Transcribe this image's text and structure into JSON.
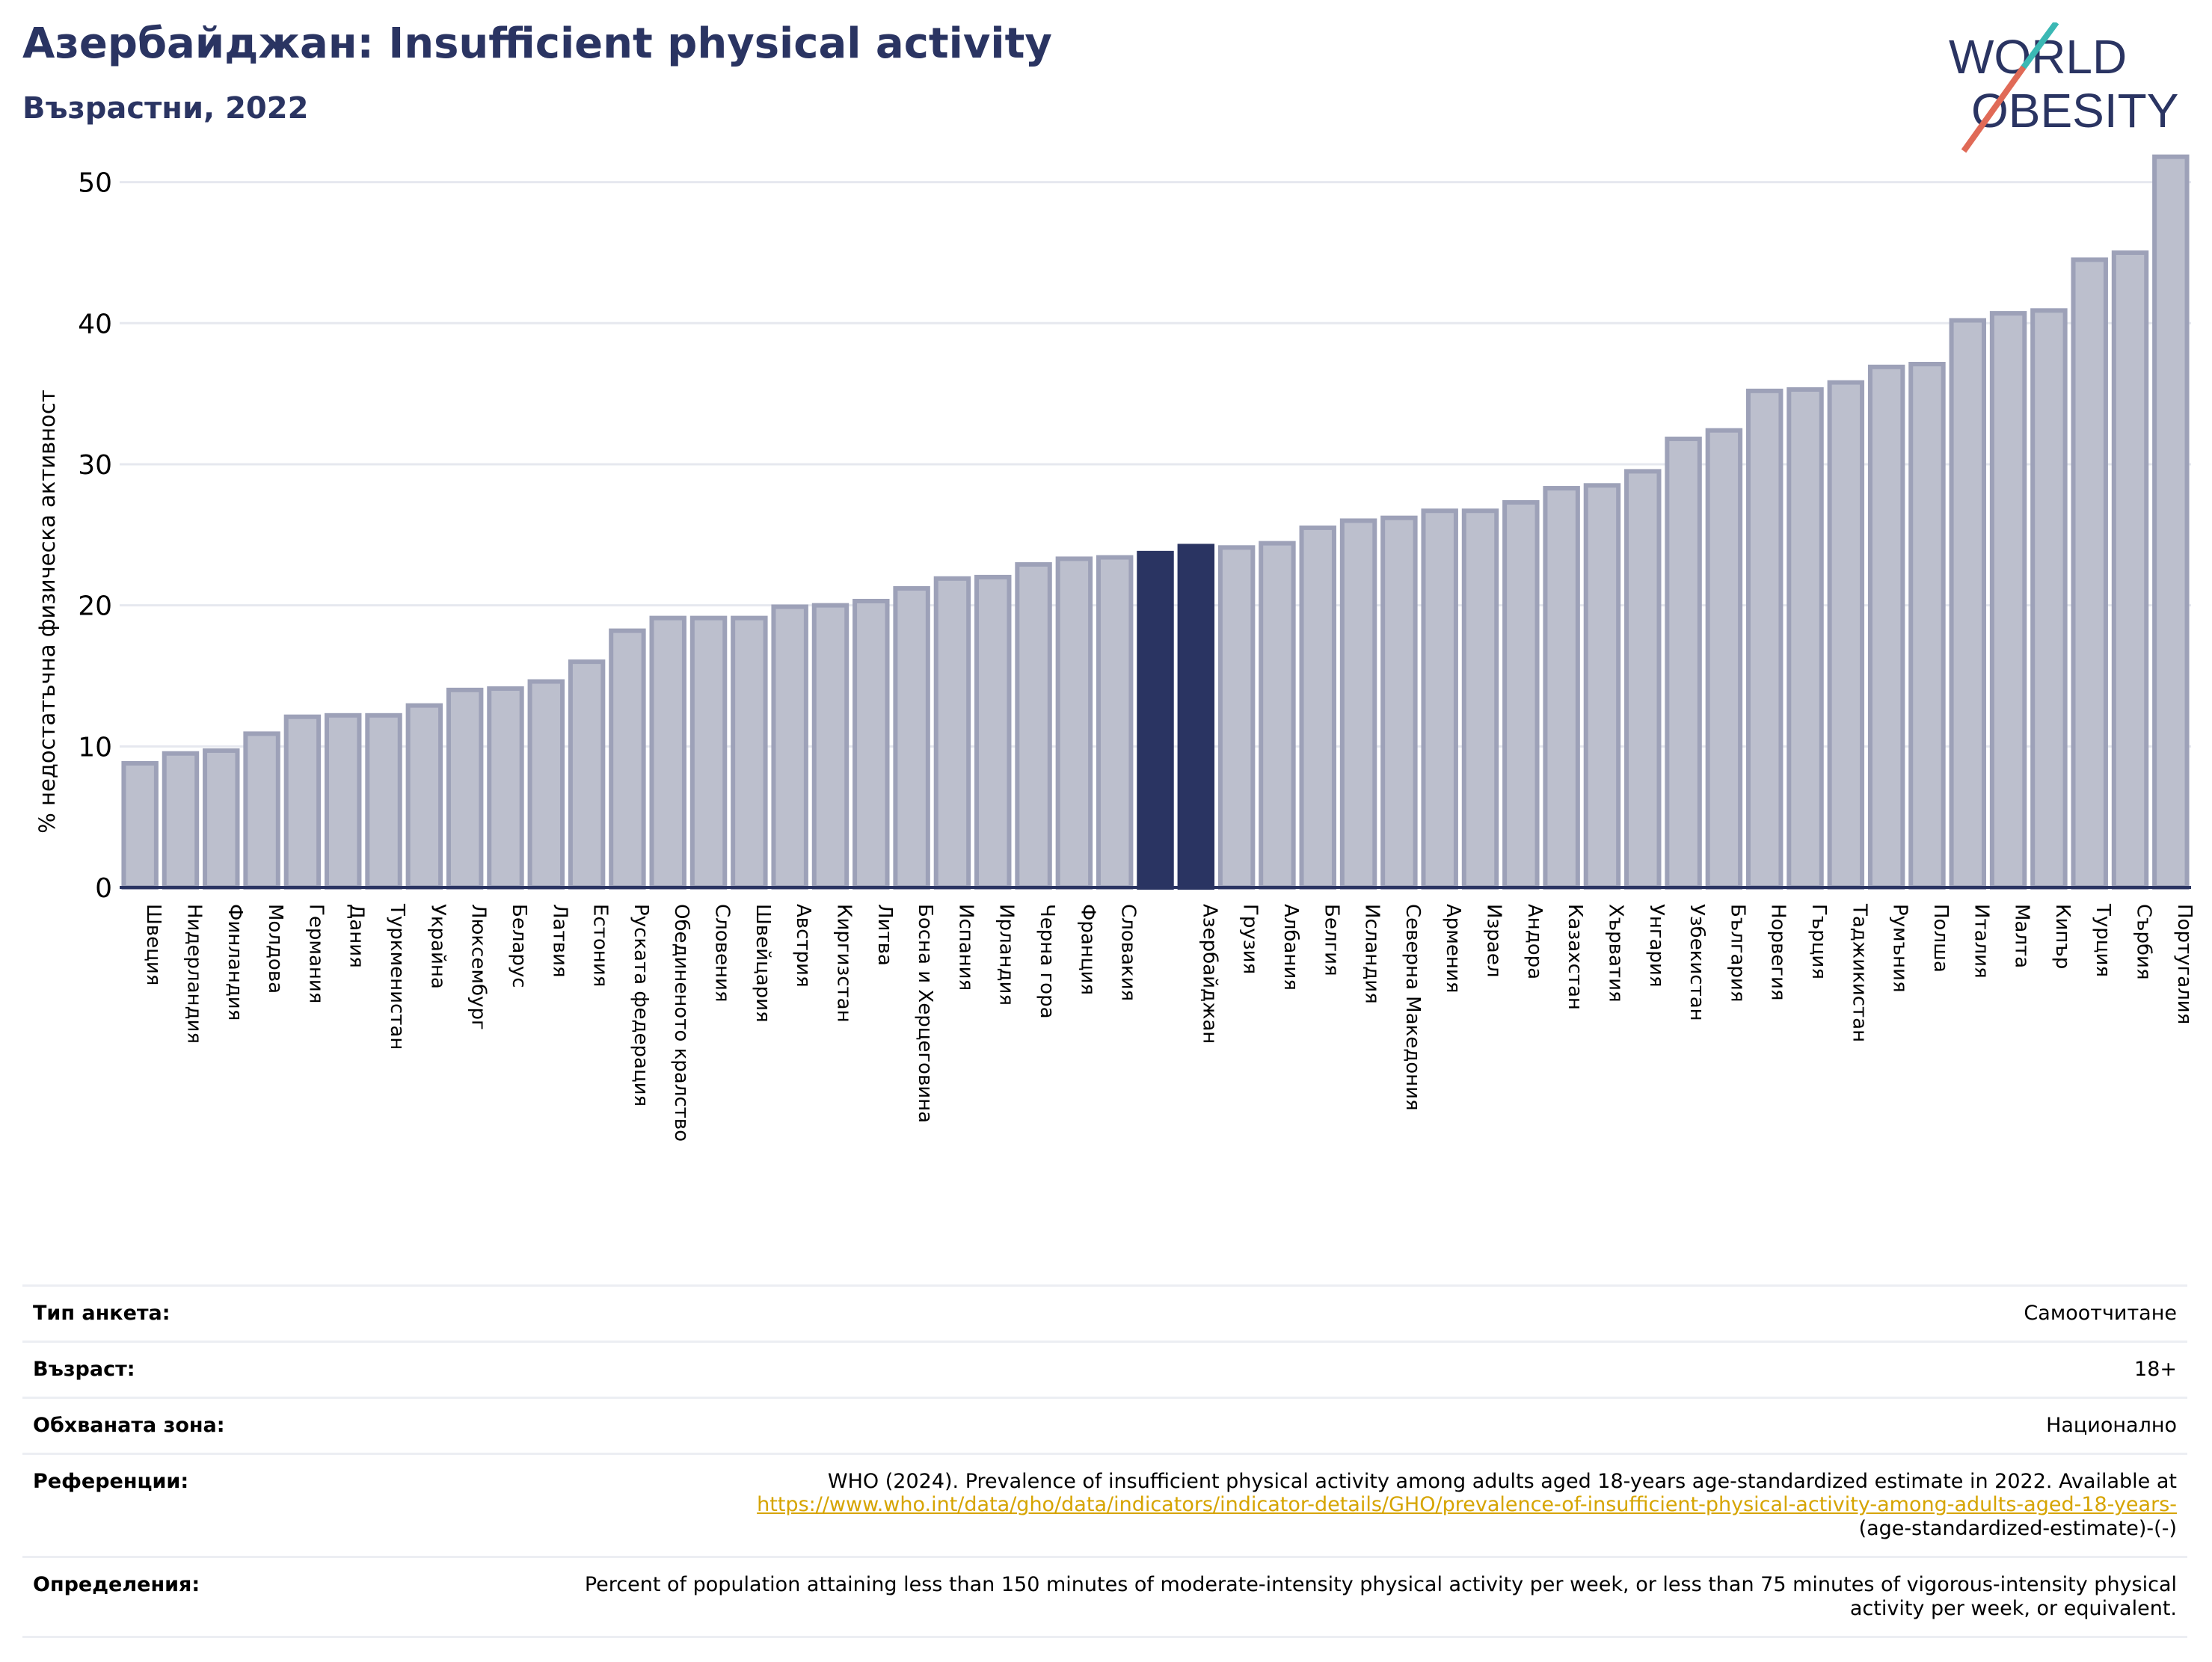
{
  "header": {
    "title": "Азербайджан: Insufficient physical activity",
    "subtitle": "Възрастни, 2022"
  },
  "logo": {
    "line1": "WORLD",
    "line2": "OBESITY",
    "text_color": "#2a3462",
    "slash_colors": [
      "#3bb8b4",
      "#e06a57"
    ]
  },
  "colors": {
    "bar_fill": "#bcbfcd",
    "bar_stroke": "#9da1b8",
    "highlight": "#2a3462",
    "grid": "#e6e8ef",
    "axis": "#2a3462"
  },
  "chart_data": {
    "type": "bar",
    "ylabel": "% недостатъчна физическа активност",
    "xlabel": "",
    "ylim": [
      0,
      53
    ],
    "yticks": [
      0,
      10,
      20,
      30,
      40,
      50
    ],
    "grid": true,
    "highlight": [
      "",
      "Азербайджан"
    ],
    "categories": [
      "Швеция",
      "Нидерландия",
      "Финландия",
      "Молдова",
      "Германия",
      "Дания",
      "Туркменистан",
      "Украйна",
      "Люксембург",
      "Беларус",
      "Латвия",
      "Естония",
      "Руската федерация",
      "Обединеното кралство",
      "Словения",
      "Швейцария",
      "Австрия",
      "Киргизстан",
      "Литва",
      "Босна и Херцеговина",
      "Испания",
      "Ирландия",
      "Черна гора",
      "Франция",
      "Словакия",
      "",
      "Азербайджан",
      "Грузия",
      "Албания",
      "Белгия",
      "Исландия",
      "Северна Македония",
      "Армения",
      "Израел",
      "Андора",
      "Казахстан",
      "Хърватия",
      "Унгария",
      "Узбекистан",
      "България",
      "Норвегия",
      "Гърция",
      "Таджикистан",
      "Румъния",
      "Полша",
      "Италия",
      "Малта",
      "Кипър",
      "Турция",
      "Сърбия",
      "Португалия"
    ],
    "values": [
      8.8,
      9.5,
      9.7,
      10.9,
      12.1,
      12.2,
      12.2,
      12.9,
      14.0,
      14.1,
      14.6,
      16.0,
      18.2,
      19.1,
      19.1,
      19.1,
      19.9,
      20.0,
      20.3,
      21.2,
      21.9,
      22.0,
      22.9,
      23.3,
      23.4,
      23.7,
      24.2,
      24.1,
      24.4,
      25.5,
      26.0,
      26.2,
      26.7,
      26.7,
      27.3,
      28.3,
      28.5,
      29.5,
      31.8,
      32.4,
      35.2,
      35.3,
      35.8,
      36.9,
      37.1,
      40.2,
      40.7,
      40.9,
      44.5,
      45.0,
      51.8
    ]
  },
  "info": {
    "rows": [
      {
        "label": "Тип анкета:",
        "value": "Самоотчитане"
      },
      {
        "label": "Възраст:",
        "value": "18+"
      },
      {
        "label": "Обхваната зона:",
        "value": "Национално"
      },
      {
        "label": "Референции:",
        "value": "WHO (2024). Prevalence of insufficient physical activity among adults aged 18-years age-standardized estimate in 2022. Available at",
        "link": "https://www.who.int/data/gho/data/indicators/indicator-details/GHO/prevalence-of-insufficient-physical-activity-among-adults-aged-18-years-",
        "value_after": "(age-standardized-estimate)-(-)"
      },
      {
        "label": "Определения:",
        "value": "Percent of population attaining less than 150 minutes of moderate-intensity physical activity per week, or less than 75 minutes of vigorous-intensity physical activity per week, or equivalent."
      }
    ]
  }
}
